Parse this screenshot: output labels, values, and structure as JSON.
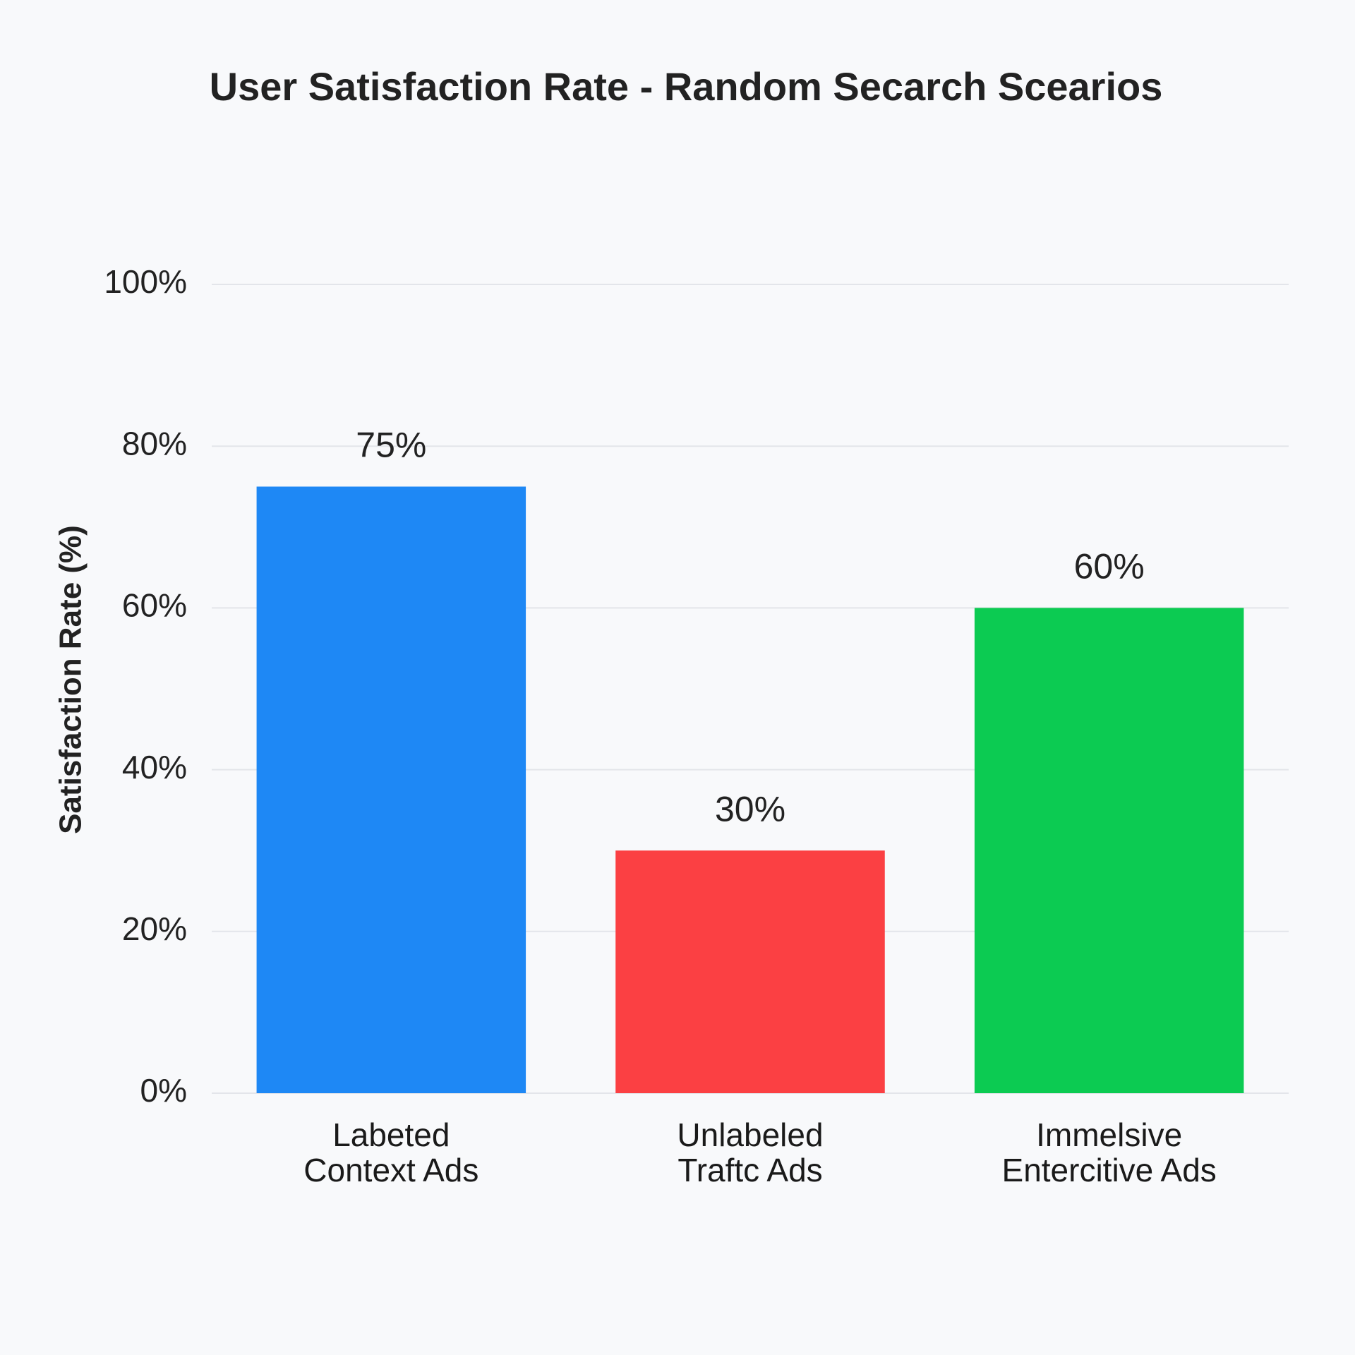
{
  "chart_data": {
    "type": "bar",
    "title": "User Satisfaction Rate - Random Secarch Scearios",
    "y_label": "Satisfaction Rate (%)",
    "categories": [
      "Labeted\nContext Ads",
      "Unlabeled\nTraftc Ads",
      "Immelsive\nEntercitive Ads"
    ],
    "values": [
      75,
      30,
      60
    ],
    "value_labels": [
      "75%",
      "30%",
      "60%"
    ],
    "colors": [
      "#1e88f5",
      "#fb4043",
      "#0ccb52"
    ],
    "ylim": [
      0,
      100
    ],
    "yticks": [
      {
        "value": 0,
        "label": "0%"
      },
      {
        "value": 20,
        "label": "20%"
      },
      {
        "value": 40,
        "label": "40%"
      },
      {
        "value": 60,
        "label": "60%"
      },
      {
        "value": 80,
        "label": "80%"
      },
      {
        "value": 100,
        "label": "100%"
      }
    ],
    "grid": true
  }
}
